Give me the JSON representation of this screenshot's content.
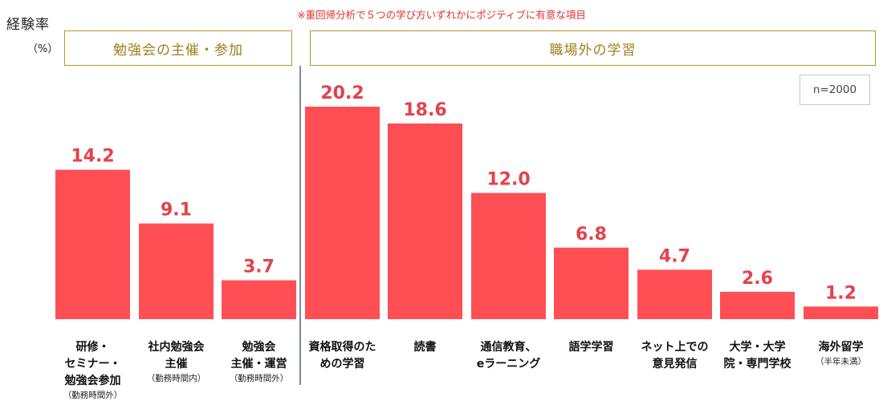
{
  "ylabel": "経験率",
  "yunit": "（%）",
  "note": "※重回帰分析で５つの学び方いずれかにポジティブに有意な項目",
  "sample": "n=2000",
  "groups": [
    {
      "label": "勉強会の主催・参加"
    },
    {
      "label": "職場外の学習"
    }
  ],
  "chart_data": {
    "type": "bar",
    "ylabel": "経験率",
    "unit": "%",
    "categories": [
      {
        "lines": [
          "研修・",
          "セミナー・",
          "勉強会参加"
        ],
        "sub": "（勤務時間外）"
      },
      {
        "lines": [
          "社内勉強会",
          "主催"
        ],
        "sub": "（勤務時間内）"
      },
      {
        "lines": [
          "勉強会",
          "主催・運営"
        ],
        "sub": "（勤務時間外）"
      },
      {
        "lines": [
          "資格取得のた",
          "めの学習"
        ],
        "sub": ""
      },
      {
        "lines": [
          "読書"
        ],
        "sub": ""
      },
      {
        "lines": [
          "通信教育、",
          "eラーニング"
        ],
        "sub": ""
      },
      {
        "lines": [
          "語学学習"
        ],
        "sub": ""
      },
      {
        "lines": [
          "ネット上での",
          "意見発信"
        ],
        "sub": ""
      },
      {
        "lines": [
          "大学・大学",
          "院・専門学校"
        ],
        "sub": ""
      },
      {
        "lines": [
          "海外留学"
        ],
        "sub": "（半年未満）"
      }
    ],
    "values": [
      14.2,
      9.1,
      3.7,
      20.2,
      18.6,
      12.0,
      6.8,
      4.7,
      2.6,
      1.2
    ],
    "value_labels": [
      "14.2",
      "9.1",
      "3.7",
      "20.2",
      "18.6",
      "12.0",
      "6.8",
      "4.7",
      "2.6",
      "1.2"
    ],
    "group_index": [
      0,
      0,
      0,
      1,
      1,
      1,
      1,
      1,
      1,
      1
    ],
    "bar_color": "#ff4f55",
    "ylim": [
      0,
      22
    ],
    "grid": false
  }
}
